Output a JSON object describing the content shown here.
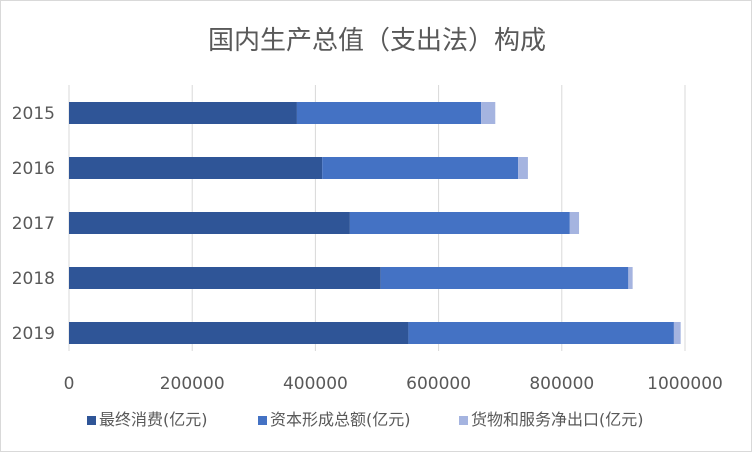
{
  "chart_data": {
    "type": "bar",
    "orientation": "horizontal",
    "stacked": true,
    "title": "国内生产总值（支出法）构成",
    "categories": [
      "2015",
      "2016",
      "2017",
      "2018",
      "2019"
    ],
    "series": [
      {
        "name": "最终消费(亿元)",
        "color": "#2f5597",
        "values": [
          370000,
          411000,
          456000,
          506000,
          551000
        ]
      },
      {
        "name": "资本形成总额(亿元)",
        "color": "#4472c4",
        "values": [
          299000,
          318000,
          357000,
          402000,
          431000
        ]
      },
      {
        "name": "货物和服务净出口(亿元)",
        "color": "#a5b4e0",
        "values": [
          23000,
          16000,
          15000,
          7000,
          11000
        ]
      }
    ],
    "xlim": [
      0,
      1000000
    ],
    "x_ticks": [
      "0",
      "200000",
      "400000",
      "600000",
      "800000",
      "1000000"
    ],
    "grid": "vertical",
    "legend_position": "bottom"
  }
}
